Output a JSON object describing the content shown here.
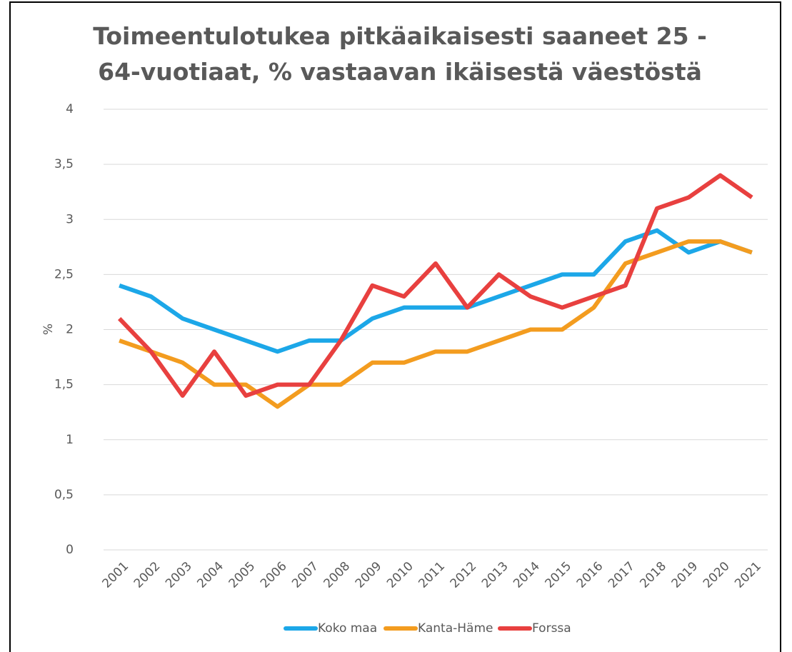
{
  "chart_data": {
    "type": "line",
    "title": "Toimeentulotukea pitkäaikaisesti saaneet 25 - 64-vuotiaat, % vastaavan ikäisestä väestöstä",
    "y_label": "%",
    "categories": [
      "2001",
      "2002",
      "2003",
      "2004",
      "2005",
      "2006",
      "2007",
      "2008",
      "2009",
      "2010",
      "2011",
      "2012",
      "2013",
      "2014",
      "2015",
      "2016",
      "2017",
      "2018",
      "2019",
      "2020",
      "2021"
    ],
    "series": [
      {
        "name": "Koko maa",
        "color": "#1ca7e8",
        "values": [
          2.4,
          2.3,
          2.1,
          2.0,
          1.9,
          1.8,
          1.9,
          1.9,
          2.1,
          2.2,
          2.2,
          2.2,
          2.3,
          2.4,
          2.5,
          2.5,
          2.8,
          2.9,
          2.7,
          2.8,
          2.7
        ]
      },
      {
        "name": "Kanta-Häme",
        "color": "#f39c1f",
        "values": [
          1.9,
          1.8,
          1.7,
          1.5,
          1.5,
          1.3,
          1.5,
          1.5,
          1.7,
          1.7,
          1.8,
          1.8,
          1.9,
          2.0,
          2.0,
          2.2,
          2.6,
          2.7,
          2.8,
          2.8,
          2.7
        ]
      },
      {
        "name": "Forssa",
        "color": "#e8403f",
        "values": [
          2.1,
          1.8,
          1.4,
          1.8,
          1.4,
          1.5,
          1.5,
          1.9,
          2.4,
          2.3,
          2.6,
          2.2,
          2.5,
          2.3,
          2.2,
          2.3,
          2.4,
          3.1,
          3.2,
          3.4,
          3.2
        ]
      }
    ],
    "ylim": [
      0,
      4
    ],
    "yticks": [
      0,
      {
        "value": 0.5,
        "label": "0,5"
      },
      1,
      {
        "value": 1.5,
        "label": "1,5"
      },
      2,
      {
        "value": 2.5,
        "label": "2,5"
      },
      3,
      {
        "value": 3.5,
        "label": "3,5"
      },
      4
    ],
    "grid": true,
    "legend": "bottom"
  }
}
